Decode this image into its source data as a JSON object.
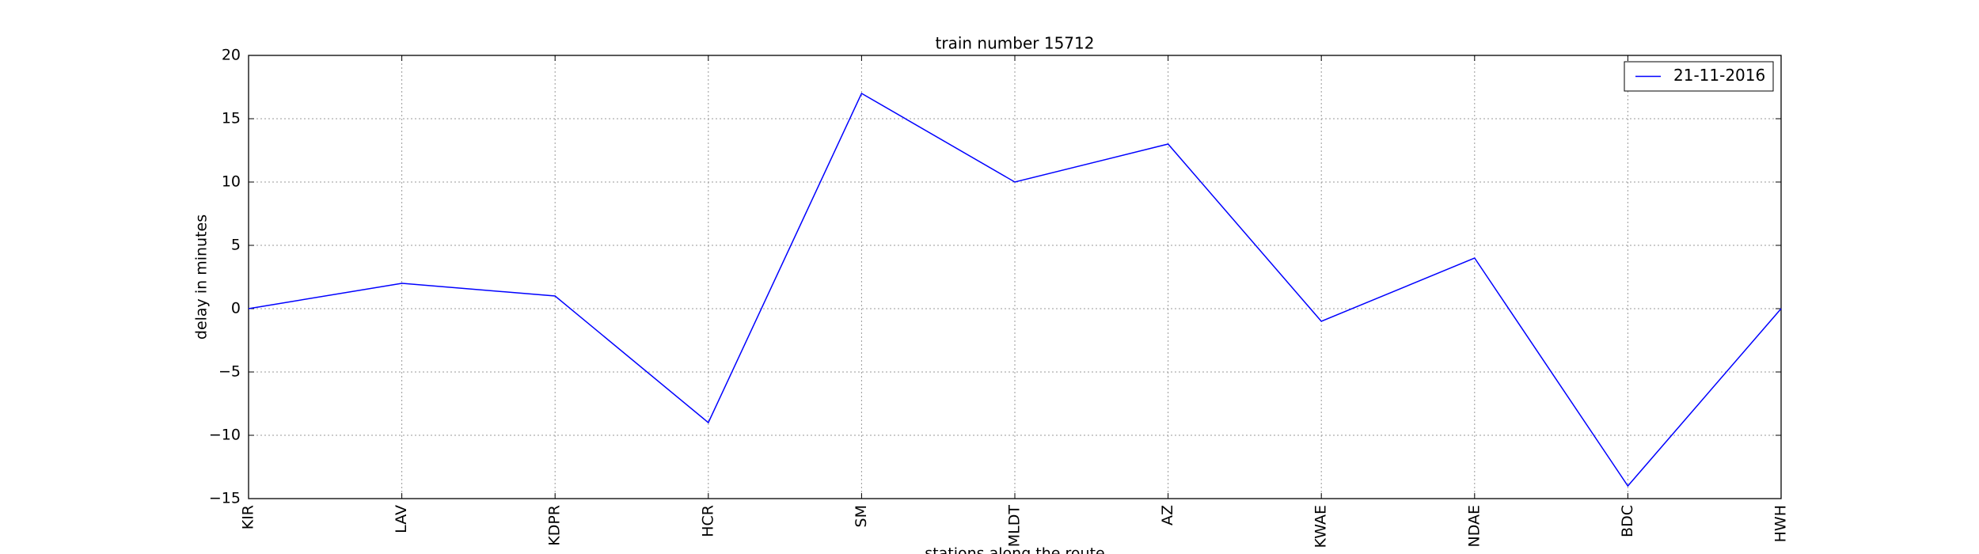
{
  "chart_data": {
    "type": "line",
    "title": "train number 15712",
    "xlabel": "stations along the route",
    "ylabel": "delay in minutes",
    "categories": [
      "KIR",
      "LAV",
      "KDPR",
      "HCR",
      "SM",
      "MLDT",
      "AZ",
      "KWAE",
      "NDAE",
      "BDC",
      "HWH"
    ],
    "series": [
      {
        "name": "21-11-2016",
        "color": "#0000ff",
        "values": [
          0,
          2,
          1,
          -9,
          17,
          10,
          13,
          -1,
          4,
          -14,
          0
        ]
      }
    ],
    "ylim": [
      -15,
      20
    ],
    "yticks": [
      {
        "value": -15,
        "label": "−15"
      },
      {
        "value": -10,
        "label": "−10"
      },
      {
        "value": -5,
        "label": "−5"
      },
      0,
      5,
      10,
      15,
      20
    ],
    "grid": true,
    "legend": "upper right"
  }
}
